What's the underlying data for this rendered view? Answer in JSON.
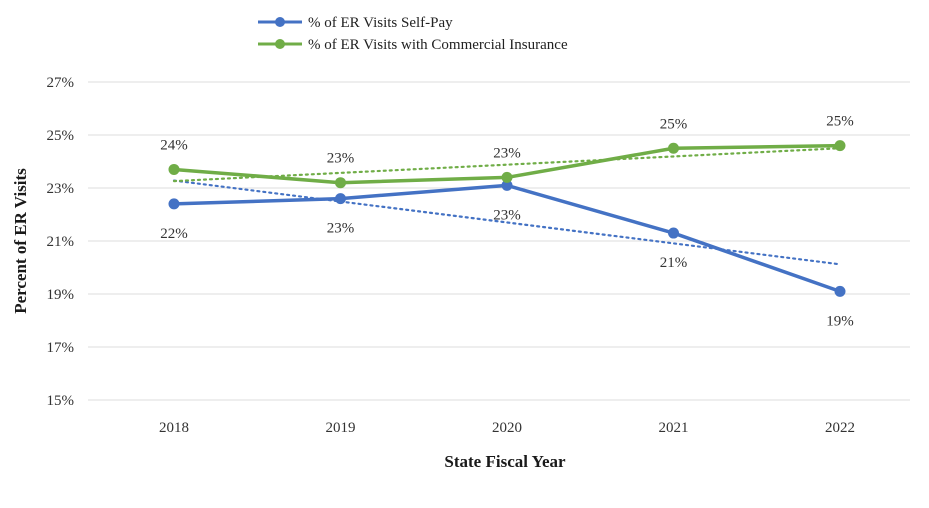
{
  "chart_data": {
    "type": "line",
    "categories": [
      "2018",
      "2019",
      "2020",
      "2021",
      "2022"
    ],
    "xlabel": "State Fiscal Year",
    "ylabel": "Percent of ER Visits",
    "ylim": [
      15,
      27
    ],
    "yticks": [
      15,
      17,
      19,
      21,
      23,
      25,
      27
    ],
    "y_tick_suffix": "%",
    "grid": true,
    "legend_position": "top",
    "series": [
      {
        "name": "% of ER Visits Self-Pay",
        "color": "#4472c4",
        "values": [
          22.4,
          22.6,
          23.1,
          21.3,
          19.1
        ],
        "labels": [
          "22%",
          "23%",
          "23%",
          "21%",
          "19%"
        ],
        "label_side": [
          "below",
          "below",
          "below",
          "below",
          "below"
        ],
        "trendline": true
      },
      {
        "name": "% of ER Visits with Commercial Insurance",
        "color": "#70ad47",
        "values": [
          23.7,
          23.2,
          23.4,
          24.5,
          24.6
        ],
        "labels": [
          "24%",
          "23%",
          "23%",
          "25%",
          "25%"
        ],
        "label_side": [
          "above",
          "above",
          "above",
          "above",
          "above"
        ],
        "trendline": true
      }
    ]
  }
}
